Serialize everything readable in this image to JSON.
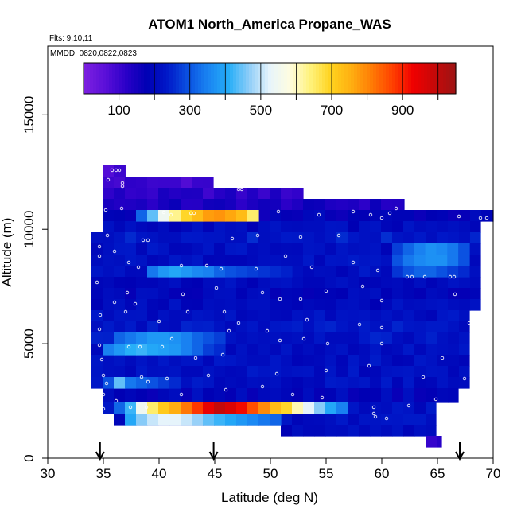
{
  "chart_data": {
    "type": "heatmap",
    "title": "ATOM1 North_America Propane_WAS",
    "annotations": [
      "Flts: 9,10,11",
      "MMDD: 0820,0822,0823"
    ],
    "xlabel": "Latitude (deg N)",
    "ylabel": "Altitude (m)",
    "xlim": [
      30,
      70
    ],
    "ylim": [
      0,
      18000
    ],
    "x_ticks": [
      "30",
      "35",
      "40",
      "45",
      "50",
      "55",
      "60",
      "65",
      "70"
    ],
    "y_ticks": [
      "0",
      "5000",
      "10000",
      "15000"
    ],
    "colorbar": {
      "range": [
        0,
        1050
      ],
      "tick_labels": [
        "100",
        "300",
        "500",
        "700",
        "900"
      ],
      "colors": [
        "#7b1fe0",
        "#5a0fd8",
        "#2a00c8",
        "#0000b4",
        "#0018c8",
        "#0a50e0",
        "#1a84f2",
        "#25aef8",
        "#8fcdf8",
        "#e6f4fb",
        "#fffde0",
        "#fff27a",
        "#ffd21e",
        "#ffae10",
        "#ff7a05",
        "#ff4000",
        "#f00000",
        "#c80808",
        "#a01414"
      ]
    },
    "flight_markers_lat": [
      34.7,
      44.9,
      67.0
    ],
    "grid": false,
    "legend": "none"
  }
}
